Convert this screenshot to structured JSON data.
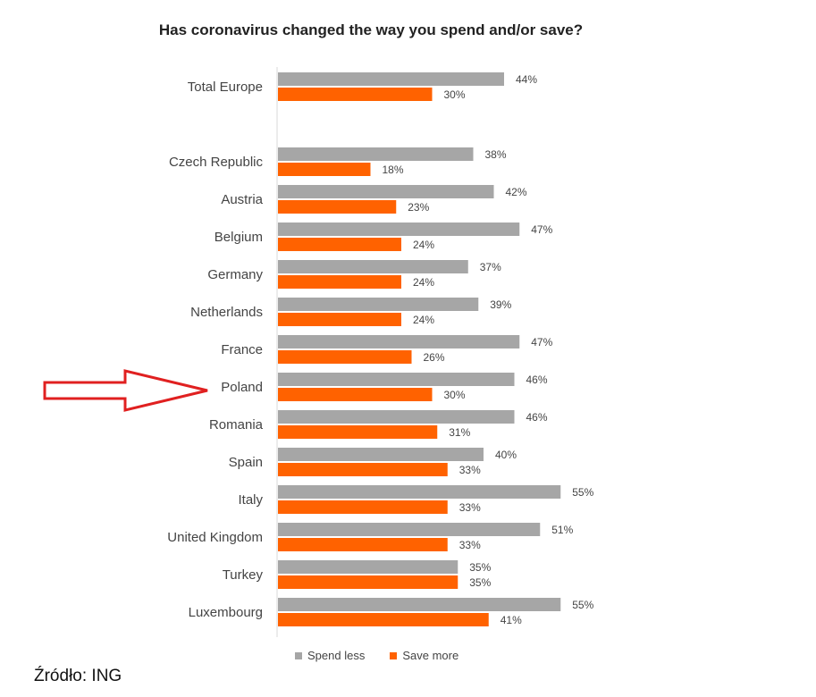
{
  "chart_data": {
    "type": "bar",
    "orientation": "horizontal",
    "title": "Has coronavirus changed the way you spend and/or save?",
    "categories": [
      "Total Europe",
      "Czech Republic",
      "Austria",
      "Belgium",
      "Germany",
      "Netherlands",
      "France",
      "Poland",
      "Romania",
      "Spain",
      "Italy",
      "United Kingdom",
      "Turkey",
      "Luxembourg"
    ],
    "series": [
      {
        "name": "Spend less",
        "color": "#a6a6a6",
        "values": [
          44,
          38,
          42,
          47,
          37,
          39,
          47,
          46,
          46,
          40,
          55,
          51,
          35,
          55
        ]
      },
      {
        "name": "Save more",
        "color": "#ff6200",
        "values": [
          30,
          18,
          23,
          24,
          24,
          24,
          26,
          30,
          31,
          33,
          33,
          33,
          35,
          41
        ]
      }
    ],
    "value_suffix": "%",
    "xlim": [
      0,
      60
    ],
    "grid": false,
    "legend_position": "bottom",
    "highlight": {
      "category": "Poland",
      "marker": "arrow",
      "color": "#e02020"
    }
  },
  "source_note": "Źródło: ING"
}
